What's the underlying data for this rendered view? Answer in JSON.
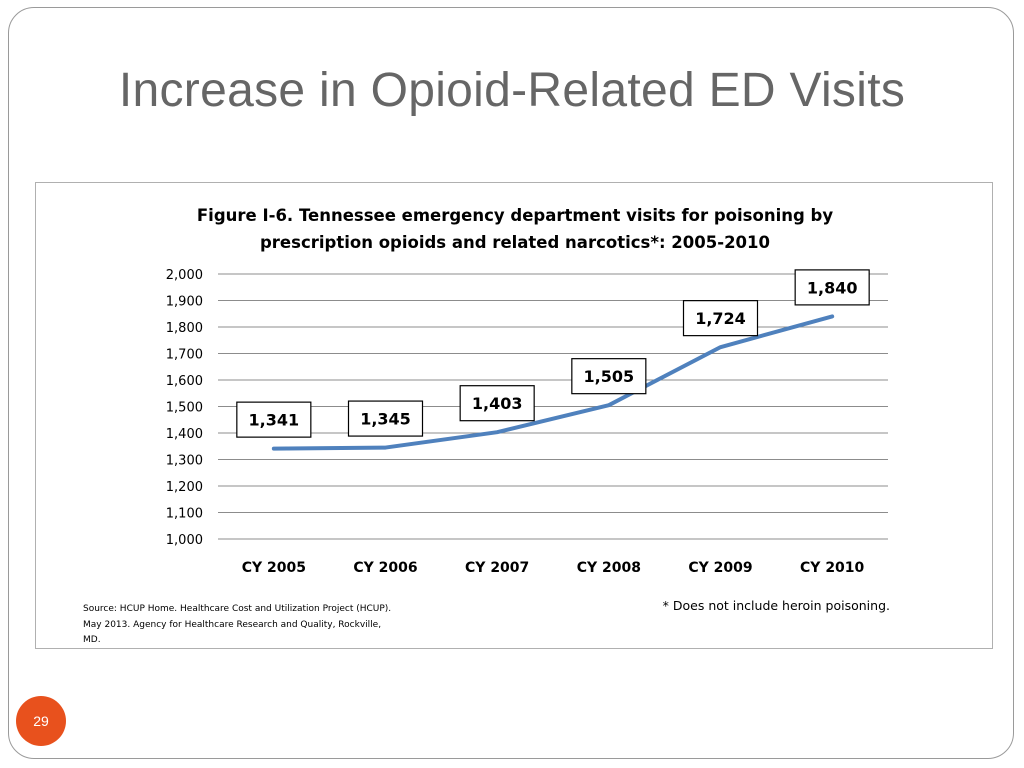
{
  "slide": {
    "title": "Increase in Opioid-Related ED Visits",
    "page_number": "29",
    "accent_color": "#e8511d"
  },
  "chart_data": {
    "type": "line",
    "title_line1": "Figure I-6.  Tennessee emergency department visits for poisoning by",
    "title_line2": "prescription opioids and related narcotics*: 2005-2010",
    "categories": [
      "CY 2005",
      "CY 2006",
      "CY 2007",
      "CY 2008",
      "CY 2009",
      "CY 2010"
    ],
    "values": [
      1341,
      1345,
      1403,
      1505,
      1724,
      1840
    ],
    "data_labels": [
      "1,341",
      "1,345",
      "1,403",
      "1,505",
      "1,724",
      "1,840"
    ],
    "ylim": [
      1000,
      2000
    ],
    "ytick_values": [
      1000,
      1100,
      1200,
      1300,
      1400,
      1500,
      1600,
      1700,
      1800,
      1900,
      2000
    ],
    "ytick_labels": [
      "1,000",
      "1,100",
      "1,200",
      "1,300",
      "1,400",
      "1,500",
      "1,600",
      "1,700",
      "1,800",
      "1,900",
      "2,000"
    ],
    "grid": true,
    "line_color": "#4f81bd",
    "source_lines": [
      "Source: HCUP Home. Healthcare Cost and Utilization Project (HCUP).",
      "May 2013. Agency for Healthcare Research and Quality, Rockville,",
      "MD."
    ],
    "footnote": "* Does not include heroin poisoning."
  }
}
